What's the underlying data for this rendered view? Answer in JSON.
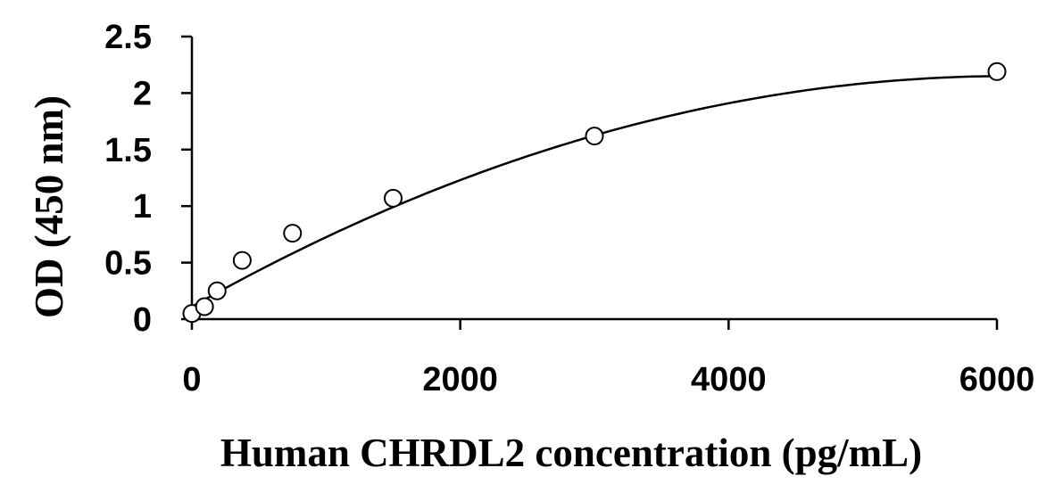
{
  "chart_data": {
    "type": "scatter",
    "xlabel": "Human CHRDL2 concentration (pg/mL)",
    "ylabel": "OD (450 nm)",
    "xlim": [
      0,
      6000
    ],
    "ylim": [
      0,
      2.5
    ],
    "xticks": [
      "0",
      "2000",
      "4000",
      "6000"
    ],
    "yticks": [
      "0",
      "0.5",
      "1",
      "1.5",
      "2",
      "2.5"
    ],
    "grid": false,
    "legend": "none",
    "series": [
      {
        "points": [
          {
            "x": 0,
            "y": 0.05
          },
          {
            "x": 94,
            "y": 0.11
          },
          {
            "x": 188,
            "y": 0.25
          },
          {
            "x": 375,
            "y": 0.52
          },
          {
            "x": 750,
            "y": 0.76
          },
          {
            "x": 1500,
            "y": 1.07
          },
          {
            "x": 3000,
            "y": 1.62
          },
          {
            "x": 6000,
            "y": 2.19
          }
        ]
      }
    ],
    "fit_curve": {
      "type": "polynomial",
      "coefficients": [
        0.11,
        0.00067,
        -5.5e-08
      ]
    }
  }
}
